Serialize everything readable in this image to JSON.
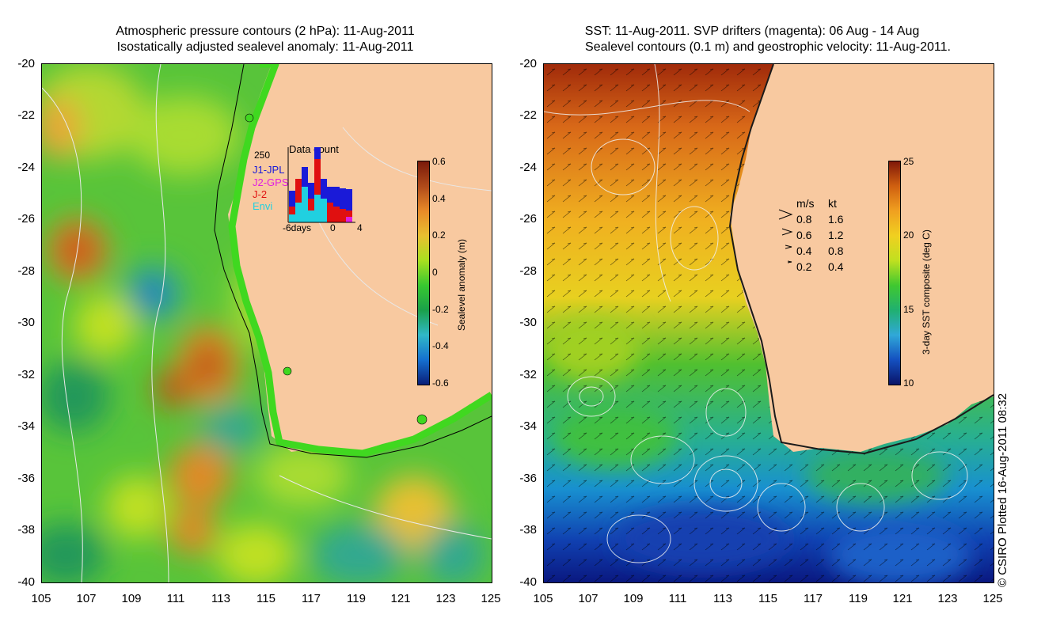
{
  "left_panel": {
    "title_line1": "Atmospheric pressure contours (2 hPa): 11-Aug-2011",
    "title_line2": "Isostatically adjusted sealevel anomaly: 11-Aug-2011",
    "colorbar": {
      "label": "Sealevel anomaly (m)",
      "ticks": [
        "0.6",
        "0.4",
        "0.2",
        "0",
        "-0.2",
        "-0.4",
        "-0.6"
      ],
      "colors": [
        "#0a1e78",
        "#1570d0",
        "#30b8c8",
        "#1aa04a",
        "#38c830",
        "#a8e020",
        "#e8c030",
        "#e88a28",
        "#b04a1a",
        "#7a1a0a"
      ]
    },
    "inset": {
      "title": "Data count",
      "y_tick": "250",
      "x_ticks": [
        "-6days",
        "0",
        "4"
      ],
      "legend": [
        {
          "name": "J1-JPL",
          "color": "#1a1ad8"
        },
        {
          "name": "J2-GPS",
          "color": "#e020e0"
        },
        {
          "name": "J-2",
          "color": "#e01010"
        },
        {
          "name": "Envi",
          "color": "#20d0e0"
        }
      ]
    }
  },
  "right_panel": {
    "title_line1": "SST: 11-Aug-2011. SVP drifters (magenta): 06 Aug - 14 Aug",
    "title_line2": "Sealevel contours (0.1 m) and geostrophic velocity: 11-Aug-2011.",
    "colorbar": {
      "label": "3-day SST composite (deg C)",
      "ticks": [
        "25",
        "20",
        "15",
        "10"
      ],
      "colors": [
        "#0a1468",
        "#1450c0",
        "#30a8d8",
        "#20b070",
        "#40c830",
        "#c0e020",
        "#f0d020",
        "#f0a020",
        "#d06010",
        "#801808"
      ]
    },
    "velocity_legend": {
      "header_ms": "m/s",
      "header_kt": "kt",
      "rows": [
        {
          "ms": "0.8",
          "kt": "1.6"
        },
        {
          "ms": "0.6",
          "kt": "1.2"
        },
        {
          "ms": "0.4",
          "kt": "0.8"
        },
        {
          "ms": "0.2",
          "kt": "0.4"
        }
      ]
    }
  },
  "axes": {
    "lat_ticks": [
      "-20",
      "-22",
      "-24",
      "-26",
      "-28",
      "-30",
      "-32",
      "-34",
      "-36",
      "-38",
      "-40"
    ],
    "lon_ticks": [
      "105",
      "107",
      "109",
      "111",
      "113",
      "115",
      "117",
      "119",
      "121",
      "123",
      "125"
    ]
  },
  "credit": "© CSIRO Plotted 16-Aug-2011 08:32",
  "colors": {
    "land": "#f8c9a0",
    "coastal_green": "#40d820"
  }
}
